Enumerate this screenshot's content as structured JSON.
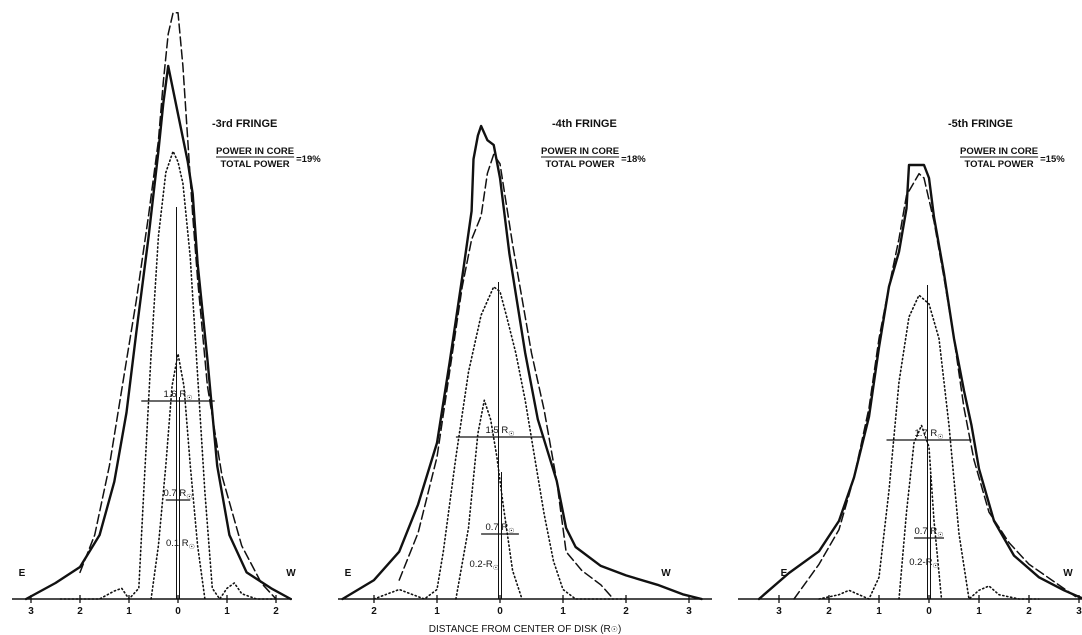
{
  "x_axis_label": "DISTANCE FROM CENTER OF DISK (R",
  "x_axis_label_symbol": "☉",
  "x_axis_label_close": ")",
  "east_label": "E",
  "west_label": "W",
  "power_numerator": "POWER IN CORE",
  "power_denominator": "TOTAL POWER",
  "chart_data": [
    {
      "type": "line",
      "title": "-3rd FRINGE",
      "power_ratio": "=19%",
      "tick_labels": [
        "3",
        "2",
        "1",
        "0",
        "1",
        "2"
      ],
      "fwhm_labels": [
        "1.6 R",
        "0.7 R",
        "0.1 R"
      ],
      "series": [
        {
          "style": "solid",
          "x": [
            -3.1,
            -2.5,
            -2.0,
            -1.6,
            -1.3,
            -1.05,
            -0.85,
            -0.6,
            -0.4,
            -0.3,
            -0.2,
            0.0,
            0.2,
            0.3,
            0.4,
            0.6,
            0.8,
            1.05,
            1.4,
            1.9,
            2.3
          ],
          "y": [
            0.0,
            0.03,
            0.06,
            0.12,
            0.22,
            0.35,
            0.5,
            0.68,
            0.84,
            0.93,
            1.0,
            0.91,
            0.82,
            0.76,
            0.63,
            0.45,
            0.25,
            0.12,
            0.05,
            0.02,
            0.0
          ]
        },
        {
          "style": "dashed",
          "x": [
            -2.0,
            -1.7,
            -1.4,
            -1.1,
            -0.85,
            -0.6,
            -0.4,
            -0.3,
            -0.2,
            -0.1,
            0.0,
            0.1,
            0.2,
            0.3,
            0.4,
            0.6,
            0.9,
            1.3,
            1.7,
            2.0
          ],
          "y": [
            0.05,
            0.12,
            0.25,
            0.42,
            0.56,
            0.72,
            0.86,
            0.97,
            1.06,
            1.1,
            1.1,
            1.0,
            0.86,
            0.72,
            0.6,
            0.4,
            0.23,
            0.1,
            0.03,
            0.0
          ]
        },
        {
          "style": "dotted",
          "x": [
            -2.4,
            -2.0,
            -1.6,
            -1.3,
            -1.15,
            -1.0,
            -0.8,
            -0.7,
            -0.55,
            -0.4,
            -0.25,
            -0.1,
            0.0,
            0.1,
            0.25,
            0.4,
            0.55,
            0.7,
            0.85,
            1.0,
            1.15,
            1.3,
            1.6,
            2.0
          ],
          "y": [
            0.0,
            0.0,
            0.0,
            0.015,
            0.02,
            0.0,
            0.02,
            0.2,
            0.46,
            0.68,
            0.8,
            0.84,
            0.82,
            0.78,
            0.64,
            0.42,
            0.2,
            0.02,
            0.0,
            0.02,
            0.03,
            0.01,
            0.0,
            0.0
          ]
        },
        {
          "style": "dotted",
          "x": [
            -0.55,
            -0.4,
            -0.25,
            -0.12,
            0.0,
            0.12,
            0.25,
            0.4,
            0.55
          ],
          "y": [
            0.0,
            0.1,
            0.25,
            0.4,
            0.46,
            0.4,
            0.25,
            0.1,
            0.0
          ]
        }
      ]
    },
    {
      "type": "line",
      "title": "-4th FRINGE",
      "power_ratio": "=18%",
      "tick_labels": [
        "2",
        "1",
        "0",
        "1",
        "2",
        "3"
      ],
      "fwhm_labels": [
        "1.5 R",
        "0.7 R",
        "0.2-R"
      ],
      "series": [
        {
          "style": "solid",
          "x": [
            -2.5,
            -2.0,
            -1.6,
            -1.3,
            -1.0,
            -0.8,
            -0.6,
            -0.45,
            -0.42,
            -0.35,
            -0.3,
            -0.2,
            -0.1,
            0.0,
            0.15,
            0.4,
            0.6,
            0.9,
            1.05,
            1.2,
            1.6,
            2.0,
            2.5,
            2.9,
            3.2
          ],
          "y": [
            0.0,
            0.04,
            0.1,
            0.2,
            0.33,
            0.5,
            0.68,
            0.82,
            0.93,
            0.98,
            1.0,
            0.97,
            0.96,
            0.89,
            0.73,
            0.52,
            0.38,
            0.25,
            0.15,
            0.11,
            0.07,
            0.05,
            0.03,
            0.01,
            0.0
          ]
        },
        {
          "style": "dashed",
          "x": [
            -1.6,
            -1.3,
            -1.0,
            -0.8,
            -0.6,
            -0.45,
            -0.3,
            -0.2,
            -0.1,
            0.0,
            0.2,
            0.5,
            0.7,
            0.9,
            1.05,
            1.3,
            1.6,
            1.8
          ],
          "y": [
            0.04,
            0.14,
            0.3,
            0.48,
            0.66,
            0.76,
            0.81,
            0.9,
            0.94,
            0.92,
            0.75,
            0.52,
            0.4,
            0.25,
            0.1,
            0.06,
            0.03,
            0.0
          ]
        },
        {
          "style": "dotted",
          "x": [
            -2.0,
            -1.6,
            -1.4,
            -1.2,
            -1.0,
            -0.9,
            -0.7,
            -0.5,
            -0.3,
            -0.1,
            0.0,
            0.1,
            0.25,
            0.4,
            0.55,
            0.7,
            0.85,
            1.0,
            1.2,
            1.6,
            2.0
          ],
          "y": [
            0.0,
            0.02,
            0.01,
            0.0,
            0.02,
            0.1,
            0.3,
            0.48,
            0.6,
            0.66,
            0.65,
            0.6,
            0.52,
            0.42,
            0.3,
            0.18,
            0.08,
            0.02,
            0.0,
            0.0,
            0.0
          ]
        },
        {
          "style": "dotted",
          "x": [
            -0.7,
            -0.5,
            -0.35,
            -0.25,
            -0.15,
            -0.05,
            0.05,
            0.2,
            0.35
          ],
          "y": [
            0.0,
            0.15,
            0.35,
            0.42,
            0.38,
            0.3,
            0.2,
            0.06,
            0.0
          ]
        }
      ]
    },
    {
      "type": "line",
      "title": "-5th FRINGE",
      "power_ratio": "=15%",
      "tick_labels": [
        "3",
        "2",
        "1",
        "0",
        "1",
        "2",
        "3"
      ],
      "fwhm_labels": [
        "1.7 R",
        "0.7 R",
        "0.2-R"
      ],
      "series": [
        {
          "style": "solid",
          "x": [
            -3.4,
            -2.8,
            -2.2,
            -1.8,
            -1.5,
            -1.2,
            -1.0,
            -0.8,
            -0.6,
            -0.45,
            -0.4,
            -0.35,
            -0.1,
            0.0,
            0.1,
            0.3,
            0.5,
            0.7,
            0.85,
            1.0,
            1.3,
            1.7,
            2.2,
            2.7,
            3.1
          ],
          "y": [
            0.0,
            0.06,
            0.11,
            0.18,
            0.28,
            0.42,
            0.58,
            0.72,
            0.8,
            0.9,
            1.0,
            1.0,
            1.0,
            0.97,
            0.88,
            0.75,
            0.6,
            0.48,
            0.4,
            0.3,
            0.18,
            0.1,
            0.05,
            0.02,
            0.0
          ]
        },
        {
          "style": "dashed",
          "x": [
            -2.7,
            -2.2,
            -1.8,
            -1.5,
            -1.2,
            -1.0,
            -0.8,
            -0.6,
            -0.45,
            -0.3,
            -0.2,
            -0.1,
            0.1,
            0.3,
            0.5,
            0.7,
            0.9,
            1.2,
            1.6,
            2.0,
            2.5,
            3.0
          ],
          "y": [
            0.0,
            0.08,
            0.16,
            0.28,
            0.44,
            0.6,
            0.72,
            0.83,
            0.93,
            0.96,
            0.98,
            0.97,
            0.87,
            0.74,
            0.6,
            0.44,
            0.32,
            0.2,
            0.13,
            0.08,
            0.04,
            0.0
          ]
        },
        {
          "style": "dotted",
          "x": [
            -2.2,
            -1.8,
            -1.6,
            -1.4,
            -1.2,
            -1.0,
            -0.8,
            -0.6,
            -0.4,
            -0.2,
            0.0,
            0.2,
            0.4,
            0.6,
            0.8,
            1.0,
            1.2,
            1.4,
            1.8,
            2.2
          ],
          "y": [
            0.0,
            0.01,
            0.02,
            0.01,
            0.0,
            0.05,
            0.25,
            0.5,
            0.65,
            0.7,
            0.68,
            0.6,
            0.4,
            0.15,
            0.0,
            0.02,
            0.03,
            0.01,
            0.0,
            0.0
          ]
        },
        {
          "style": "dotted",
          "x": [
            -0.6,
            -0.45,
            -0.3,
            -0.15,
            0.0,
            0.1,
            0.25
          ],
          "y": [
            0.0,
            0.2,
            0.36,
            0.4,
            0.35,
            0.18,
            0.0
          ]
        }
      ]
    }
  ]
}
